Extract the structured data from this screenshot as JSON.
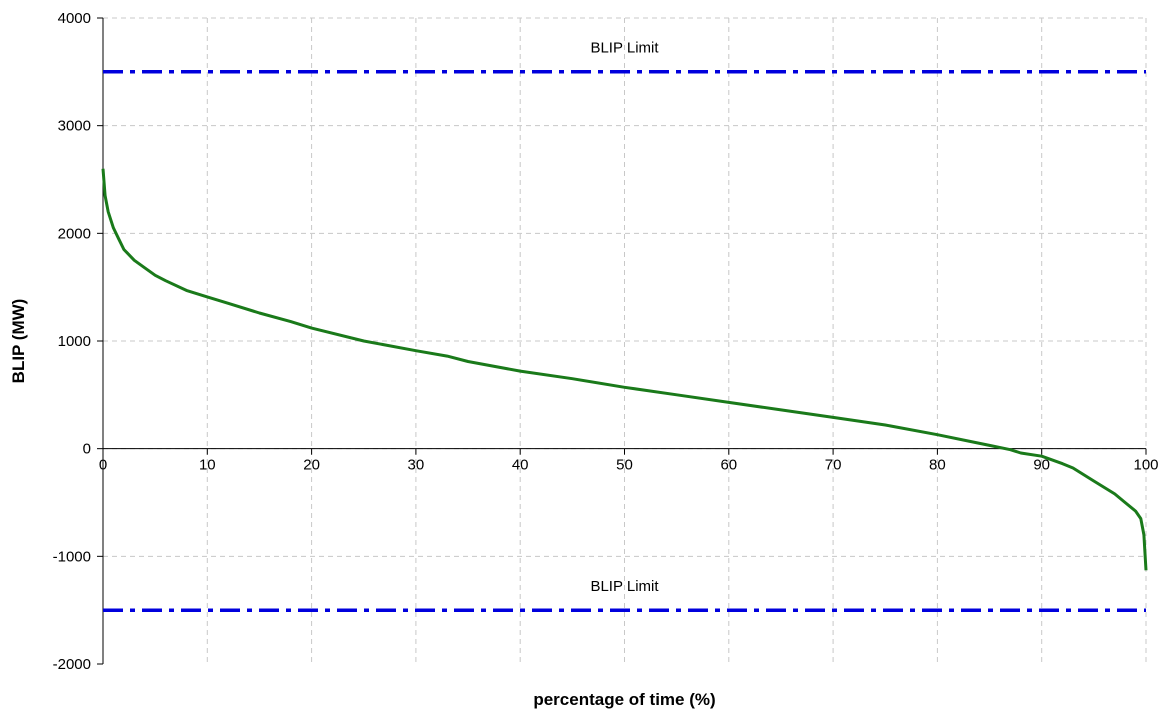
{
  "chart_data": {
    "type": "line",
    "title": "",
    "xlabel": "percentage of time (%)",
    "ylabel": "BLIP (MW)",
    "xlim": [
      0,
      100
    ],
    "ylim": [
      -2000,
      4000
    ],
    "xticks": [
      0,
      10,
      20,
      30,
      40,
      50,
      60,
      70,
      80,
      90,
      100
    ],
    "yticks": [
      -2000,
      -1000,
      0,
      1000,
      2000,
      3000,
      4000
    ],
    "xtick_labels": [
      "0",
      "10",
      "20",
      "30",
      "40",
      "50",
      "60",
      "70",
      "80",
      "90",
      "100"
    ],
    "ytick_labels": [
      "-2000",
      "-1000",
      "0",
      "1000",
      "2000",
      "3000",
      "4000"
    ],
    "grid": true,
    "series": [
      {
        "color": "#1a7a1a",
        "x": [
          0,
          0.2,
          0.5,
          1,
          1.5,
          2,
          3,
          4,
          5,
          6,
          8,
          10,
          12,
          15,
          18,
          20,
          25,
          30,
          33,
          35,
          40,
          45,
          50,
          55,
          60,
          65,
          70,
          75,
          80,
          83,
          85,
          87,
          88,
          90,
          92,
          93,
          95,
          97,
          98,
          99,
          99.5,
          99.8,
          100
        ],
        "y": [
          2600,
          2350,
          2200,
          2050,
          1950,
          1850,
          1750,
          1680,
          1610,
          1560,
          1470,
          1410,
          1350,
          1260,
          1180,
          1120,
          1000,
          910,
          860,
          810,
          720,
          650,
          570,
          500,
          430,
          360,
          290,
          220,
          130,
          70,
          30,
          -10,
          -40,
          -70,
          -140,
          -180,
          -300,
          -420,
          -500,
          -580,
          -650,
          -800,
          -1130
        ]
      },
      {
        "name": "BLIP Limit",
        "color": "#0000dd",
        "style": "dash-dot",
        "x": [
          0,
          100
        ],
        "y": [
          3500,
          3500
        ]
      },
      {
        "name": "BLIP Limit",
        "color": "#0000dd",
        "style": "dash-dot",
        "x": [
          0,
          100
        ],
        "y": [
          -1500,
          -1500
        ]
      }
    ],
    "annotations": [
      {
        "text": "BLIP Limit",
        "x": 50,
        "y": 3680
      },
      {
        "text": "BLIP Limit",
        "x": 50,
        "y": -1320
      }
    ]
  }
}
